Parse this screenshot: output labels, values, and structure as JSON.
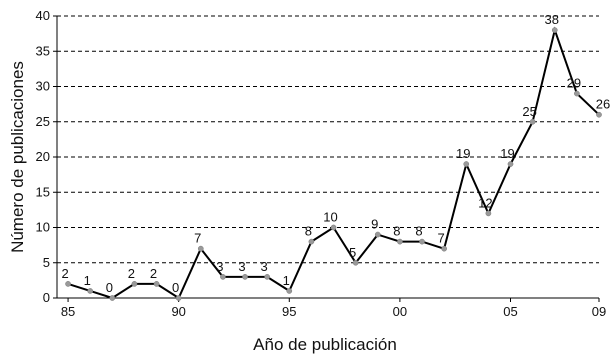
{
  "chart_data": {
    "type": "line",
    "title": "",
    "xlabel": "Año de publicación",
    "ylabel": "Número de publicaciones",
    "x": [
      1985,
      1986,
      1987,
      1988,
      1989,
      1990,
      1991,
      1992,
      1993,
      1994,
      1995,
      1996,
      1997,
      1998,
      1999,
      2000,
      2001,
      2002,
      2003,
      2004,
      2005,
      2006,
      2007,
      2008,
      2009
    ],
    "values": [
      2,
      1,
      0,
      2,
      2,
      0,
      7,
      3,
      3,
      3,
      1,
      8,
      10,
      5,
      9,
      8,
      8,
      7,
      19,
      12,
      19,
      25,
      38,
      29,
      26
    ],
    "data_labels": [
      "2",
      "1",
      "0",
      "2",
      "2",
      "0",
      "7",
      "3",
      "3",
      "3",
      "1",
      "8",
      "10",
      "5",
      "9",
      "8",
      "8",
      "7",
      "19",
      "12",
      "19",
      "25",
      "38",
      "29",
      "26"
    ],
    "xlim": [
      1984.5,
      2009
    ],
    "ylim": [
      0,
      40
    ],
    "x_ticks": [
      {
        "value": 1985,
        "label": "85"
      },
      {
        "value": 1990,
        "label": "90"
      },
      {
        "value": 1995,
        "label": "95"
      },
      {
        "value": 2000,
        "label": "00"
      },
      {
        "value": 2005,
        "label": "05"
      },
      {
        "value": 2009,
        "label": "09"
      }
    ],
    "y_ticks": [
      {
        "value": 0,
        "label": "0"
      },
      {
        "value": 5,
        "label": "5"
      },
      {
        "value": 10,
        "label": "10"
      },
      {
        "value": 15,
        "label": "15"
      },
      {
        "value": 20,
        "label": "20"
      },
      {
        "value": 25,
        "label": "25"
      },
      {
        "value": 30,
        "label": "30"
      },
      {
        "value": 35,
        "label": "35"
      },
      {
        "value": 40,
        "label": "40"
      }
    ],
    "grid": "horizontal-dashed",
    "legend": "none",
    "line_color": "#000000",
    "marker_color": "#999999",
    "grid_color": "#000000"
  }
}
